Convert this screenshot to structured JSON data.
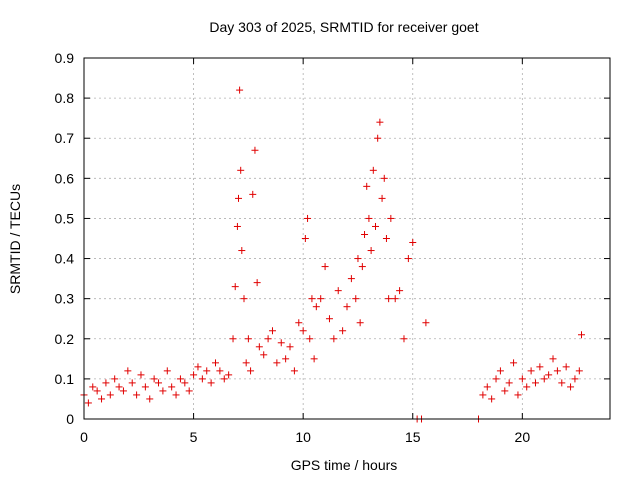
{
  "chart_data": {
    "type": "scatter",
    "title": "Day 303 of 2025, SRMTID for receiver goet",
    "xlabel": "GPS time / hours",
    "ylabel": "SRMTID / TECUs",
    "xlim": [
      0,
      24
    ],
    "ylim": [
      0,
      0.9
    ],
    "xticks": [
      0,
      5,
      10,
      15,
      20
    ],
    "yticks": [
      0,
      0.1,
      0.2,
      0.3,
      0.4,
      0.5,
      0.6,
      0.7,
      0.8,
      0.9
    ],
    "xtick_labels": [
      "0",
      "5",
      "10",
      "15",
      "20"
    ],
    "ytick_labels": [
      "0",
      "0.1",
      "0.2",
      "0.3",
      "0.4",
      "0.5",
      "0.6",
      "0.7",
      "0.8",
      "0.9"
    ],
    "grid": true,
    "marker": "+",
    "color": "#e00000",
    "series": [
      {
        "name": "SRMTID",
        "x": [
          0.0,
          0.2,
          0.4,
          0.6,
          0.8,
          1.0,
          1.2,
          1.4,
          1.6,
          1.8,
          2.0,
          2.2,
          2.4,
          2.6,
          2.8,
          3.0,
          3.2,
          3.4,
          3.6,
          3.8,
          4.0,
          4.2,
          4.4,
          4.6,
          4.8,
          5.0,
          5.2,
          5.4,
          5.6,
          5.8,
          6.0,
          6.2,
          6.4,
          6.6,
          6.8,
          6.9,
          7.0,
          7.05,
          7.1,
          7.15,
          7.2,
          7.3,
          7.4,
          7.5,
          7.6,
          7.7,
          7.8,
          7.9,
          8.0,
          8.2,
          8.4,
          8.6,
          8.8,
          9.0,
          9.2,
          9.4,
          9.6,
          9.8,
          10.0,
          10.1,
          10.2,
          10.3,
          10.4,
          10.5,
          10.6,
          10.8,
          11.0,
          11.2,
          11.4,
          11.6,
          11.8,
          12.0,
          12.2,
          12.4,
          12.5,
          12.6,
          12.7,
          12.8,
          12.9,
          13.0,
          13.1,
          13.2,
          13.3,
          13.4,
          13.5,
          13.6,
          13.7,
          13.8,
          13.9,
          14.0,
          14.2,
          14.4,
          14.6,
          14.8,
          15.0,
          15.2,
          15.4,
          15.6,
          18.0,
          18.2,
          18.4,
          18.6,
          18.8,
          19.0,
          19.2,
          19.4,
          19.6,
          19.8,
          20.0,
          20.2,
          20.4,
          20.6,
          20.8,
          21.0,
          21.2,
          21.4,
          21.6,
          21.8,
          22.0,
          22.2,
          22.4,
          22.6,
          22.7
        ],
        "y": [
          0.06,
          0.04,
          0.08,
          0.07,
          0.05,
          0.09,
          0.06,
          0.1,
          0.08,
          0.07,
          0.12,
          0.09,
          0.06,
          0.11,
          0.08,
          0.05,
          0.1,
          0.09,
          0.07,
          0.12,
          0.08,
          0.06,
          0.1,
          0.09,
          0.07,
          0.11,
          0.13,
          0.1,
          0.12,
          0.09,
          0.14,
          0.12,
          0.1,
          0.11,
          0.2,
          0.33,
          0.48,
          0.55,
          0.82,
          0.62,
          0.42,
          0.3,
          0.14,
          0.2,
          0.12,
          0.56,
          0.67,
          0.34,
          0.18,
          0.16,
          0.2,
          0.22,
          0.14,
          0.19,
          0.15,
          0.18,
          0.12,
          0.24,
          0.22,
          0.45,
          0.5,
          0.2,
          0.3,
          0.15,
          0.28,
          0.3,
          0.38,
          0.25,
          0.2,
          0.32,
          0.22,
          0.28,
          0.35,
          0.3,
          0.4,
          0.24,
          0.38,
          0.46,
          0.58,
          0.5,
          0.42,
          0.62,
          0.48,
          0.7,
          0.74,
          0.55,
          0.6,
          0.45,
          0.3,
          0.5,
          0.3,
          0.32,
          0.2,
          0.4,
          0.44,
          0.0,
          0.0,
          0.24,
          0.0,
          0.06,
          0.08,
          0.05,
          0.1,
          0.12,
          0.07,
          0.09,
          0.14,
          0.06,
          0.1,
          0.08,
          0.12,
          0.09,
          0.13,
          0.1,
          0.11,
          0.15,
          0.12,
          0.09,
          0.13,
          0.08,
          0.1,
          0.12,
          0.21
        ]
      }
    ]
  }
}
